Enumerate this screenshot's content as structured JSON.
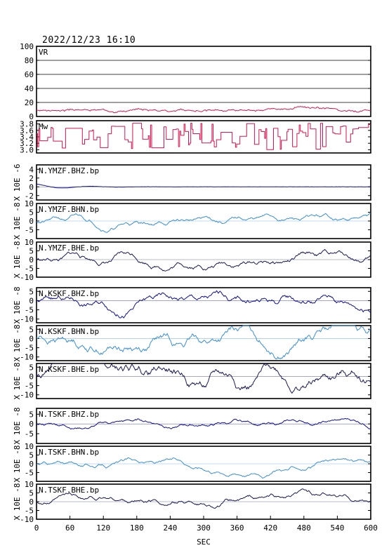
{
  "timestamp": "2022/12/23 16:10",
  "chart_data": {
    "type": "line",
    "x_axis": {
      "label": "SEC",
      "range": [
        0,
        600
      ],
      "ticks": [
        0,
        60,
        120,
        180,
        240,
        300,
        360,
        420,
        480,
        540,
        600
      ]
    },
    "colors": {
      "vr_mw": "#d6154f",
      "z": "#101090",
      "h": "#3b8fd9",
      "e": "#1a1a55"
    },
    "panels": [
      {
        "id": "vr",
        "label": "VR",
        "ylim": [
          0,
          100
        ],
        "yticks": [
          0,
          20,
          40,
          60,
          80,
          100
        ],
        "ytick_labels": [
          "0",
          "20",
          "40",
          "60",
          "80",
          "100"
        ],
        "grid": true,
        "ylabel": "",
        "color": "vr_mw",
        "series": {
          "kind": "noise",
          "base": 9,
          "amp": 3.5,
          "seed": 3,
          "points": 300
        }
      },
      {
        "id": "mw",
        "label": "Mw",
        "ylim": [
          2.9,
          3.9
        ],
        "yticks": [
          3.0,
          3.2,
          3.4,
          3.6,
          3.8
        ],
        "ytick_labels": [
          "3.0",
          "3.2",
          "3.4",
          "3.6",
          "3.8"
        ],
        "grid": false,
        "ylabel": "",
        "color": "vr_mw",
        "series": {
          "kind": "step",
          "low": 3.0,
          "high": 3.85,
          "seed": 11,
          "points": 300
        }
      },
      {
        "id": "ymzf-bhz",
        "label": "N.YMZF.BHZ.bp",
        "ylim": [
          -3,
          5
        ],
        "yticks": [
          -2,
          0,
          2,
          4
        ],
        "ytick_labels": [
          "-2",
          "0",
          "2",
          "4"
        ],
        "grid": false,
        "ylabel": "X 10E -6",
        "color": "z",
        "series": {
          "kind": "decay",
          "start": 0.6,
          "seed": 5,
          "points": 300
        }
      },
      {
        "id": "ymzf-bhn",
        "label": "N.YMZF.BHN.bp",
        "ylim": [
          -10,
          10
        ],
        "yticks": [
          -5,
          0,
          5,
          10
        ],
        "ytick_labels": [
          "-5",
          "0",
          "5",
          "10"
        ],
        "grid": false,
        "ylabel": "X 10E -8",
        "color": "h",
        "series": {
          "kind": "wave",
          "amp": 1.3,
          "seed": 21,
          "points": 400
        }
      },
      {
        "id": "ymzf-bhe",
        "label": "N.YMZF.BHE.bp",
        "ylim": [
          -10,
          10
        ],
        "yticks": [
          -10,
          -5,
          0,
          5,
          10
        ],
        "ytick_labels": [
          "-10",
          "-5",
          "0",
          "5",
          "10"
        ],
        "grid": false,
        "ylabel": "X 10E -8",
        "color": "e",
        "series": {
          "kind": "wave",
          "amp": 1.6,
          "seed": 33,
          "points": 400
        }
      },
      {
        "id": "kskf-bhz",
        "label": "N.KSKF.BHZ.bp",
        "ylim": [
          -12,
          7
        ],
        "yticks": [
          -10,
          -5,
          0,
          5
        ],
        "ytick_labels": [
          "-10",
          "-5",
          "0",
          "5"
        ],
        "grid": false,
        "ylabel": "X 10E -8",
        "color": "z",
        "series": {
          "kind": "wave",
          "amp": 1.9,
          "seed": 44,
          "points": 400
        }
      },
      {
        "id": "kskf-bhn",
        "label": "N.KSKF.BHN.bp",
        "ylim": [
          -12,
          7
        ],
        "yticks": [
          -10,
          -5,
          0,
          5
        ],
        "ytick_labels": [
          "-10",
          "-5",
          "0",
          "5"
        ],
        "grid": false,
        "ylabel": "X 10E -8",
        "color": "h",
        "series": {
          "kind": "wave",
          "amp": 2.6,
          "seed": 55,
          "points": 400
        }
      },
      {
        "id": "kskf-bhe",
        "label": "N.KSKF.BHE.bp",
        "ylim": [
          -12,
          7
        ],
        "yticks": [
          -10,
          -5,
          0,
          5
        ],
        "ytick_labels": [
          "-10",
          "-5",
          "0",
          "5"
        ],
        "grid": false,
        "ylabel": "X 10E -8",
        "color": "e",
        "series": {
          "kind": "wave",
          "amp": 3.0,
          "seed": 66,
          "points": 400
        }
      },
      {
        "id": "tskf-bhz",
        "label": "N.TSKF.BHZ.bp",
        "ylim": [
          -10,
          8
        ],
        "yticks": [
          -5,
          0,
          5
        ],
        "ytick_labels": [
          "-5",
          "0",
          "5"
        ],
        "grid": false,
        "ylabel": "X 10E -8",
        "color": "z",
        "series": {
          "kind": "wave",
          "amp": 0.9,
          "seed": 77,
          "points": 400
        }
      },
      {
        "id": "tskf-bhn",
        "label": "N.TSKF.BHN.bp",
        "ylim": [
          -10,
          10
        ],
        "yticks": [
          -5,
          0,
          5,
          10
        ],
        "ytick_labels": [
          "-5",
          "0",
          "5",
          "10"
        ],
        "grid": false,
        "ylabel": "X 10E -8",
        "color": "h",
        "series": {
          "kind": "wave",
          "amp": 1.1,
          "seed": 88,
          "points": 400
        }
      },
      {
        "id": "tskf-bhe",
        "label": "N.TSKF.BHE.bp",
        "ylim": [
          -10,
          10
        ],
        "yticks": [
          -10,
          -5,
          0,
          5,
          10
        ],
        "ytick_labels": [
          "-10",
          "-5",
          "0",
          "5",
          "10"
        ],
        "grid": false,
        "ylabel": "X 10E -8",
        "color": "e",
        "series": {
          "kind": "wave",
          "amp": 1.3,
          "seed": 99,
          "points": 400
        }
      }
    ]
  }
}
